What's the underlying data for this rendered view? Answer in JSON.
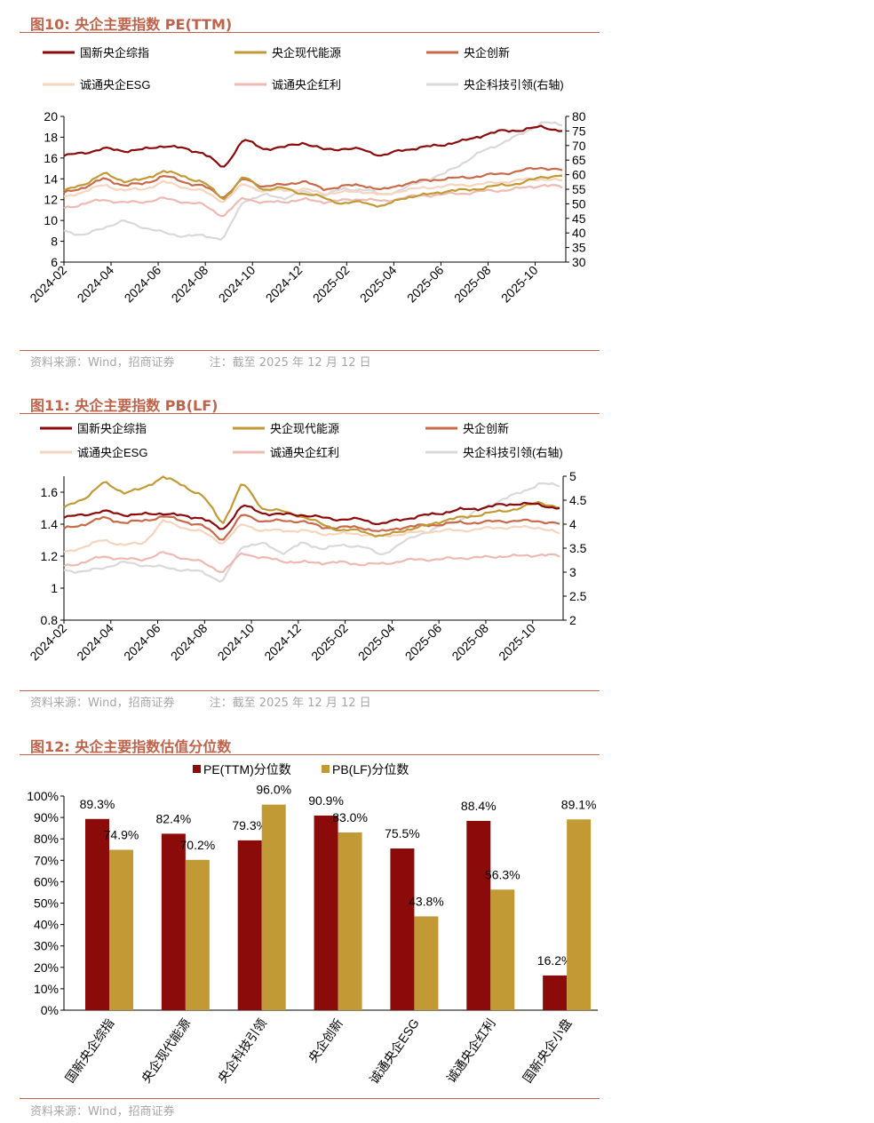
{
  "figures": [
    {
      "title": "图10: 央企主要指数 PE(TTM)",
      "source": "资料来源：Wind，招商证券　　　注：截至 2025 年 12 月 12 日",
      "chart_data": {
        "type": "line",
        "x_ticks": [
          "2024-02",
          "2024-04",
          "2024-06",
          "2024-08",
          "2024-10",
          "2024-12",
          "2025-02",
          "2025-04",
          "2025-06",
          "2025-08",
          "2025-10"
        ],
        "left_axis": {
          "min": 6,
          "max": 20,
          "ticks": [
            6,
            8,
            10,
            12,
            14,
            16,
            18,
            20
          ]
        },
        "right_axis": {
          "min": 30,
          "max": 80,
          "ticks": [
            30,
            35,
            40,
            45,
            50,
            55,
            60,
            65,
            70,
            75,
            80
          ]
        },
        "legend": [
          "国新央企综指",
          "央企现代能源",
          "央企创新",
          "诚通央企ESG",
          "诚通央企红利",
          "央企科技引领(右轴)"
        ],
        "series": [
          {
            "name": "国新央企综指",
            "color": "#8b0a0a",
            "axis": "left",
            "values": [
              16.2,
              16.5,
              16.9,
              16.7,
              16.8,
              17.2,
              16.9,
              16.5,
              15.0,
              17.8,
              16.9,
              17.0,
              17.5,
              16.8,
              16.9,
              16.8,
              16.2,
              16.8,
              17.0,
              17.3,
              17.6,
              18.2,
              18.6,
              18.7,
              19.0,
              18.6
            ]
          },
          {
            "name": "央企现代能源",
            "color": "#c29a35",
            "axis": "left",
            "values": [
              12.8,
              13.5,
              14.5,
              13.8,
              13.9,
              14.8,
              14.2,
              13.7,
              12.0,
              14.2,
              13.0,
              13.1,
              12.6,
              12.2,
              11.6,
              11.8,
              11.3,
              12.2,
              12.4,
              12.8,
              12.9,
              13.1,
              13.4,
              13.6,
              14.2,
              14.3
            ]
          },
          {
            "name": "央企创新",
            "color": "#c9694a",
            "axis": "left",
            "values": [
              12.6,
              13.2,
              14.0,
              13.4,
              13.5,
              14.3,
              13.7,
              13.3,
              12.2,
              14.0,
              13.3,
              13.4,
              13.8,
              13.0,
              13.3,
              13.4,
              12.9,
              13.5,
              13.8,
              14.0,
              14.1,
              14.3,
              14.5,
              14.8,
              15.1,
              14.8
            ]
          },
          {
            "name": "诚通央企ESG",
            "color": "#f6d4bd",
            "axis": "left",
            "values": [
              12.2,
              12.8,
              13.4,
              12.9,
              13.0,
              13.7,
              13.2,
              12.8,
              11.8,
              13.5,
              12.8,
              12.9,
              13.0,
              12.6,
              12.7,
              12.8,
              12.4,
              12.9,
              13.1,
              13.3,
              13.4,
              13.5,
              13.7,
              13.9,
              14.0,
              13.8
            ]
          },
          {
            "name": "诚通央企红利",
            "color": "#efb9b3",
            "axis": "left",
            "values": [
              11.2,
              11.6,
              12.0,
              11.7,
              11.8,
              12.1,
              11.8,
              11.5,
              10.4,
              12.2,
              11.7,
              11.8,
              12.0,
              11.8,
              11.9,
              12.1,
              11.8,
              12.2,
              12.4,
              12.5,
              12.6,
              12.8,
              12.9,
              13.1,
              13.4,
              13.2
            ]
          },
          {
            "name": "央企科技引领(右轴)",
            "color": "#d9d9d9",
            "axis": "right",
            "values": [
              41,
              39,
              42,
              44,
              42,
              40,
              39,
              39,
              38,
              51,
              53,
              52,
              54,
              53,
              55,
              55,
              53,
              55,
              58,
              60,
              64,
              68,
              71,
              74,
              78,
              77
            ]
          }
        ]
      }
    },
    {
      "title": "图11: 央企主要指数 PB(LF)",
      "source": "资料来源：Wind，招商证券　　　注：截至 2025 年 12 月 12 日",
      "chart_data": {
        "type": "line",
        "x_ticks": [
          "2024-02",
          "2024-04",
          "2024-06",
          "2024-08",
          "2024-10",
          "2024-12",
          "2025-02",
          "2025-04",
          "2025-06",
          "2025-08",
          "2025-10"
        ],
        "left_axis": {
          "min": 0.8,
          "max": 1.7,
          "ticks": [
            0.8,
            1.0,
            1.2,
            1.4,
            1.6
          ]
        },
        "right_axis": {
          "min": 2.0,
          "max": 5.0,
          "ticks": [
            2.0,
            2.5,
            3.0,
            3.5,
            4.0,
            4.5,
            5.0
          ]
        },
        "legend": [
          "国新央企综指",
          "央企现代能源",
          "央企创新",
          "诚通央企ESG",
          "诚通央企红利",
          "央企科技引领(右轴)"
        ],
        "series": [
          {
            "name": "国新央企综指",
            "color": "#8b0a0a",
            "axis": "left",
            "values": [
              1.44,
              1.46,
              1.48,
              1.46,
              1.46,
              1.47,
              1.45,
              1.44,
              1.36,
              1.52,
              1.47,
              1.46,
              1.46,
              1.44,
              1.43,
              1.43,
              1.4,
              1.43,
              1.45,
              1.47,
              1.49,
              1.5,
              1.52,
              1.53,
              1.52,
              1.5
            ]
          },
          {
            "name": "央企现代能源",
            "color": "#c29a35",
            "axis": "left",
            "values": [
              1.5,
              1.56,
              1.66,
              1.6,
              1.62,
              1.7,
              1.64,
              1.58,
              1.4,
              1.66,
              1.5,
              1.48,
              1.45,
              1.4,
              1.36,
              1.36,
              1.32,
              1.36,
              1.38,
              1.42,
              1.44,
              1.46,
              1.48,
              1.5,
              1.54,
              1.5
            ]
          },
          {
            "name": "央企创新",
            "color": "#c9694a",
            "axis": "left",
            "values": [
              1.37,
              1.4,
              1.44,
              1.41,
              1.42,
              1.45,
              1.42,
              1.39,
              1.3,
              1.46,
              1.42,
              1.42,
              1.42,
              1.38,
              1.38,
              1.38,
              1.35,
              1.38,
              1.39,
              1.4,
              1.41,
              1.41,
              1.42,
              1.42,
              1.42,
              1.4
            ]
          },
          {
            "name": "诚通央企ESG",
            "color": "#f6d4bd",
            "axis": "left",
            "values": [
              1.22,
              1.26,
              1.3,
              1.27,
              1.28,
              1.42,
              1.38,
              1.35,
              1.28,
              1.4,
              1.36,
              1.36,
              1.36,
              1.34,
              1.34,
              1.34,
              1.32,
              1.34,
              1.35,
              1.36,
              1.36,
              1.37,
              1.38,
              1.38,
              1.38,
              1.34
            ]
          },
          {
            "name": "诚通央企红利",
            "color": "#efb9b3",
            "axis": "left",
            "values": [
              1.14,
              1.16,
              1.2,
              1.18,
              1.18,
              1.22,
              1.19,
              1.16,
              1.1,
              1.22,
              1.19,
              1.17,
              1.16,
              1.16,
              1.16,
              1.15,
              1.15,
              1.17,
              1.18,
              1.18,
              1.19,
              1.19,
              1.2,
              1.2,
              1.21,
              1.2
            ]
          },
          {
            "name": "央企科技引领(右轴)",
            "color": "#d9d9d9",
            "axis": "right",
            "values": [
              3.05,
              3.0,
              3.1,
              3.2,
              3.15,
              3.1,
              3.05,
              3.0,
              2.8,
              3.55,
              3.6,
              3.4,
              3.6,
              3.5,
              3.55,
              3.55,
              3.35,
              3.6,
              3.8,
              3.95,
              4.1,
              4.3,
              4.5,
              4.65,
              4.85,
              4.8
            ]
          }
        ]
      }
    },
    {
      "title": "图12: 央企主要指数估值分位数",
      "source": "资料来源：Wind，招商证券",
      "chart_data": {
        "type": "bar",
        "categories": [
          "国新央企综指",
          "央企现代能源",
          "央企科技引领",
          "央企创新",
          "诚通央企ESG",
          "诚通央企红利",
          "国新央企小盘"
        ],
        "ylim": [
          0,
          100
        ],
        "y_ticks": [
          "0%",
          "10%",
          "20%",
          "30%",
          "40%",
          "50%",
          "60%",
          "70%",
          "80%",
          "90%",
          "100%"
        ],
        "series": [
          {
            "name": "PE(TTM)分位数",
            "color": "#8b0a0a",
            "values": [
              89.3,
              82.4,
              79.3,
              90.9,
              75.5,
              88.4,
              16.2
            ],
            "labels": [
              "89.3%",
              "82.4%",
              "79.3%",
              "90.9%",
              "75.5%",
              "88.4%",
              "16.2%"
            ]
          },
          {
            "name": "PB(LF)分位数",
            "color": "#c29a35",
            "values": [
              74.9,
              70.2,
              96.0,
              83.0,
              43.8,
              56.3,
              89.1
            ],
            "labels": [
              "74.9%",
              "70.2%",
              "96.0%",
              "83.0%",
              "43.8%",
              "56.3%",
              "89.1%"
            ]
          }
        ]
      }
    }
  ]
}
